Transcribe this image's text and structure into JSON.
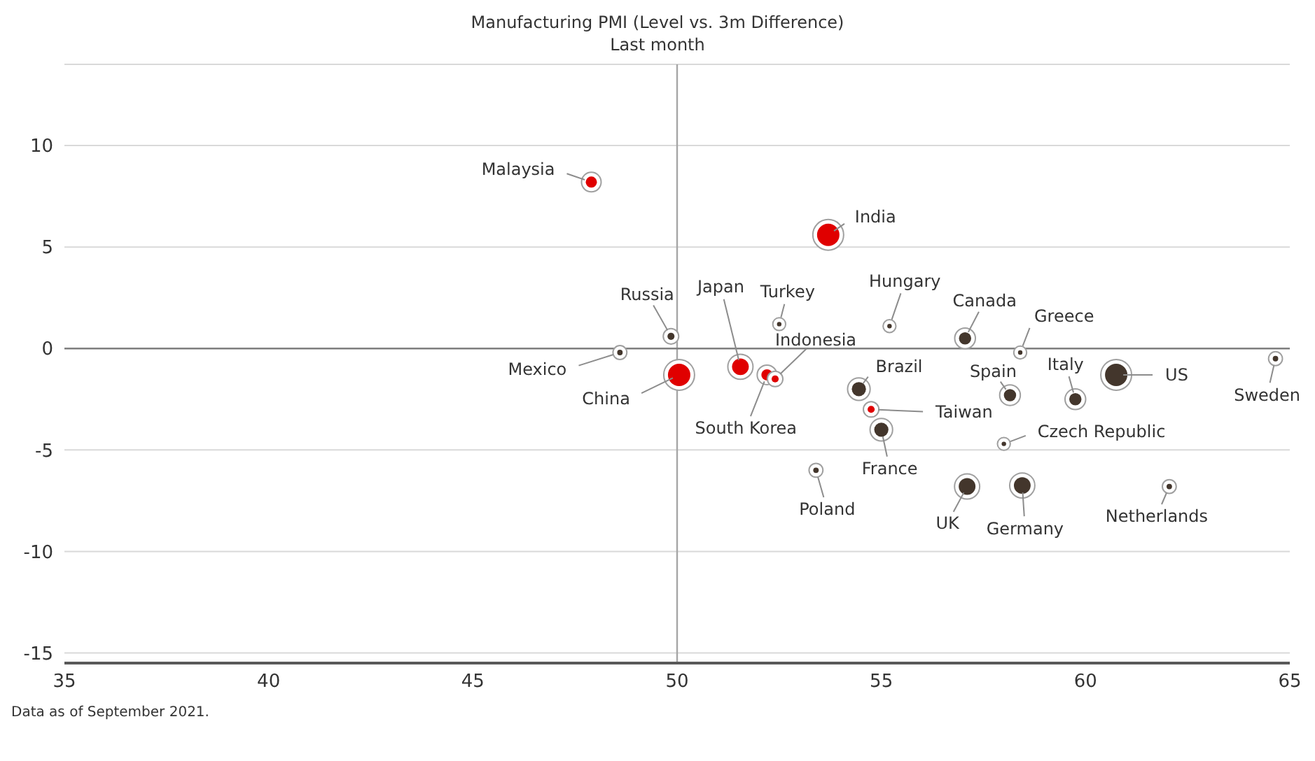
{
  "chart_data": {
    "type": "bubble",
    "title": "Manufacturing PMI (Level vs. 3m Difference)",
    "subtitle": "Last month",
    "series": [
      {
        "color": "#e00000",
        "x": [
          47.9,
          53.7,
          50.05,
          51.55,
          52.2,
          52.4,
          54.75
        ],
        "values": [
          8.2,
          5.6,
          -1.3,
          -0.9,
          -1.3,
          -1.5,
          -3.0
        ],
        "sizes": [
          0.25,
          1,
          1,
          0.56,
          0.25,
          0.1,
          0.1
        ]
      },
      {
        "color": "#43362c",
        "x": [
          49.85,
          48.6,
          52.5,
          55.2,
          54.45,
          55.0,
          57.05,
          58.4,
          58.15,
          59.75,
          60.75,
          64.65,
          58.0,
          53.4,
          57.1,
          58.45,
          62.05
        ],
        "values": [
          0.6,
          -0.2,
          1.2,
          1.1,
          -2.0,
          -4.0,
          0.5,
          -0.2,
          -2.3,
          -2.5,
          -1.3,
          -0.5,
          -4.7,
          -6.0,
          -6.8,
          -6.75,
          -6.8
        ],
        "sizes": [
          0.1,
          0.06,
          0.04,
          0.04,
          0.4,
          0.4,
          0.3,
          0.04,
          0.3,
          0.3,
          1,
          0.06,
          0.04,
          0.06,
          0.56,
          0.56,
          0.06
        ]
      }
    ],
    "annotations": [
      {
        "text": "Malaysia",
        "x": 47.9,
        "y": 8.2
      },
      {
        "text": "India",
        "x": 53.7,
        "y": 5.6
      },
      {
        "text": "Russia",
        "x": 49.85,
        "y": 0.6
      },
      {
        "text": "Mexico",
        "x": 48.6,
        "y": -0.2
      },
      {
        "text": "China",
        "x": 50.05,
        "y": -1.3
      },
      {
        "text": "Japan",
        "x": 51.55,
        "y": -0.9
      },
      {
        "text": "Turkey",
        "x": 52.5,
        "y": 1.2
      },
      {
        "text": "Hungary",
        "x": 55.2,
        "y": 1.1
      },
      {
        "text": "Indonesia",
        "x": 52.4,
        "y": -1.5
      },
      {
        "text": "South Korea",
        "x": 52.2,
        "y": -1.3
      },
      {
        "text": "Brazil",
        "x": 54.45,
        "y": -2.0
      },
      {
        "text": "Taiwan",
        "x": 54.75,
        "y": -3.0
      },
      {
        "text": "France",
        "x": 55.0,
        "y": -4.0
      },
      {
        "text": "Canada",
        "x": 57.05,
        "y": 0.5
      },
      {
        "text": "Greece",
        "x": 58.4,
        "y": -0.2
      },
      {
        "text": "Spain",
        "x": 58.15,
        "y": -2.3
      },
      {
        "text": "Italy",
        "x": 59.75,
        "y": -2.5
      },
      {
        "text": "US",
        "x": 60.75,
        "y": -1.3
      },
      {
        "text": "Sweden",
        "x": 64.65,
        "y": -0.5
      },
      {
        "text": "Czech Republic",
        "x": 58.0,
        "y": -4.7
      },
      {
        "text": "Poland",
        "x": 53.4,
        "y": -6.0
      },
      {
        "text": "UK",
        "x": 57.1,
        "y": -6.8
      },
      {
        "text": "Germany",
        "x": 58.45,
        "y": -6.75
      },
      {
        "text": "Netherlands",
        "x": 62.05,
        "y": -6.8
      },
      "Data as of September 2021."
    ],
    "xlim": [
      35,
      65
    ],
    "xticks": [
      35,
      40,
      45,
      50,
      55,
      60,
      65
    ],
    "ylim": [
      -15.5,
      14
    ],
    "yticks": [
      -15,
      -10,
      -5,
      0,
      5,
      10
    ],
    "ref_lines": [
      {
        "axis": "x",
        "value": 50,
        "color": "#a6a6a6"
      },
      {
        "axis": "y",
        "value": 0,
        "color": "#7f7f7f"
      }
    ],
    "grid": "y",
    "marker": "circle"
  }
}
